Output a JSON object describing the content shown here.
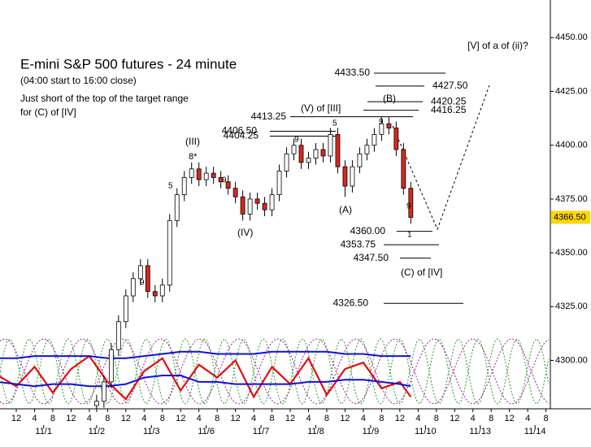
{
  "chart_data": {
    "type": "candlestick",
    "title": "E-mini S&P 500 futures - 24 minute",
    "subtitle": "(04:00 start to 16:00 close)",
    "notes": [
      "Just short of the top of the target range",
      "for (C) of [IV]"
    ],
    "ylim": [
      4277.5,
      4467.5
    ],
    "yticks": [
      {
        "value": 4450,
        "label": "4450.00"
      },
      {
        "value": 4425,
        "label": "4425.00"
      },
      {
        "value": 4400,
        "label": "4400.00"
      },
      {
        "value": 4375,
        "label": "4375.00"
      },
      {
        "value": 4350,
        "label": "4350.00"
      },
      {
        "value": 4325,
        "label": "4325.00"
      },
      {
        "value": 4300,
        "label": "4300.00"
      }
    ],
    "xlim": [
      -0.89,
      29.24
    ],
    "xticks": [
      {
        "value": 0,
        "label": "12"
      },
      {
        "value": 1,
        "label": "4"
      },
      {
        "value": 2,
        "label": "8"
      },
      {
        "value": 3,
        "label": "12"
      },
      {
        "value": 4,
        "label": "4"
      },
      {
        "value": 5,
        "label": "8"
      },
      {
        "value": 6,
        "label": "12"
      },
      {
        "value": 7,
        "label": "4"
      },
      {
        "value": 8,
        "label": "8"
      },
      {
        "value": 9,
        "label": "12"
      },
      {
        "value": 10,
        "label": "4"
      },
      {
        "value": 11,
        "label": "8"
      },
      {
        "value": 12,
        "label": "12"
      },
      {
        "value": 13,
        "label": "4"
      },
      {
        "value": 14,
        "label": "8"
      },
      {
        "value": 15,
        "label": "12"
      },
      {
        "value": 16,
        "label": "4"
      },
      {
        "value": 17,
        "label": "8"
      },
      {
        "value": 18,
        "label": "12"
      },
      {
        "value": 19,
        "label": "4"
      },
      {
        "value": 20,
        "label": "8"
      },
      {
        "value": 21,
        "label": "12"
      },
      {
        "value": 22,
        "label": "4"
      },
      {
        "value": 23,
        "label": "8"
      },
      {
        "value": 24,
        "label": "12"
      },
      {
        "value": 25,
        "label": "4"
      },
      {
        "value": 26,
        "label": "8"
      },
      {
        "value": 27,
        "label": "12"
      },
      {
        "value": 28,
        "label": "4"
      },
      {
        "value": 29,
        "label": "8"
      }
    ],
    "date_ticks": [
      {
        "value": 1.5,
        "label": "11/1"
      },
      {
        "value": 4.4,
        "label": "11/2"
      },
      {
        "value": 7.4,
        "label": "11/3"
      },
      {
        "value": 10.4,
        "label": "11/6"
      },
      {
        "value": 13.4,
        "label": "11/7"
      },
      {
        "value": 16.4,
        "label": "11/8"
      },
      {
        "value": 19.4,
        "label": "11/9"
      },
      {
        "value": 22.4,
        "label": "11/10"
      },
      {
        "value": 25.4,
        "label": "11/13"
      },
      {
        "value": 28.4,
        "label": "11/14"
      }
    ],
    "candles": {
      "x": [
        4.4,
        4.8,
        5.2,
        5.6,
        6,
        6.4,
        6.8,
        7.2,
        7.6,
        8,
        8.4,
        8.8,
        9.2,
        9.6,
        10,
        10.4,
        10.8,
        11.2,
        11.6,
        12,
        12.4,
        12.8,
        13.2,
        13.6,
        14,
        14.4,
        14.8,
        15.2,
        15.6,
        16,
        16.4,
        16.8,
        17.2,
        17.6,
        18,
        18.4,
        18.8,
        19.2,
        19.6,
        20,
        20.4,
        20.8,
        21.2,
        21.6
      ],
      "open": [
        4279,
        4281,
        4290,
        4305,
        4318,
        4330,
        4338,
        4344,
        4332,
        4330,
        4335,
        4365,
        4377,
        4385,
        4389,
        4384,
        4387,
        4385,
        4383,
        4380,
        4376,
        4368,
        4375,
        4373,
        4370,
        4377,
        4388,
        4396,
        4400,
        4392,
        4394,
        4398,
        4395,
        4405,
        4390,
        4381,
        4390,
        4396,
        4400,
        4405,
        4410,
        4408,
        4398,
        4380
      ],
      "high": [
        4284,
        4293,
        4308,
        4321,
        4333,
        4341,
        4347,
        4347,
        4335,
        4338,
        4368,
        4380,
        4388,
        4392,
        4392,
        4390,
        4390,
        4388,
        4386,
        4383,
        4379,
        4378,
        4378,
        4376,
        4380,
        4391,
        4399,
        4403,
        4403,
        4397,
        4401,
        4401,
        4408,
        4408,
        4393,
        4393,
        4399,
        4403,
        4408,
        4413,
        4413,
        4411,
        4401,
        4383
      ],
      "low": [
        4276,
        4278,
        4287,
        4302,
        4315,
        4327,
        4335,
        4329,
        4327,
        4327,
        4332,
        4362,
        4374,
        4382,
        4381,
        4381,
        4382,
        4380,
        4377,
        4373,
        4365,
        4365,
        4370,
        4367,
        4367,
        4374,
        4385,
        4393,
        4389,
        4389,
        4391,
        4392,
        4392,
        4387,
        4376,
        4378,
        4387,
        4393,
        4397,
        4402,
        4405,
        4395,
        4377,
        4363.5
      ],
      "close": [
        4281,
        4290,
        4305,
        4318,
        4330,
        4338,
        4344,
        4332,
        4330,
        4335,
        4365,
        4377,
        4385,
        4389,
        4384,
        4387,
        4385,
        4383,
        4380,
        4376,
        4368,
        4375,
        4373,
        4370,
        4377,
        4388,
        4396,
        4400,
        4392,
        4394,
        4398,
        4395,
        4405,
        4390,
        4381,
        4390,
        4396,
        4400,
        4405,
        4410,
        4408,
        4398,
        4380,
        4366.5
      ],
      "up_color": "#ffffff",
      "down_color": "#d8281e"
    },
    "oscillator": {
      "x": [
        -1,
        0,
        1,
        2,
        3,
        4,
        5,
        6,
        7,
        8,
        9,
        10,
        11,
        12,
        13,
        14,
        15,
        16,
        17,
        18,
        19,
        20,
        21,
        21.6
      ],
      "series": [
        {
          "color": "#e01010",
          "values": [
            4293,
            4288,
            4297,
            4285,
            4296,
            4302,
            4290,
            4282,
            4295,
            4301,
            4286,
            4298,
            4292,
            4300,
            4283,
            4297,
            4289,
            4301,
            4284,
            4296,
            4299,
            4287,
            4290,
            4283
          ]
        },
        {
          "color": "#1010e0",
          "values": [
            4301,
            4301,
            4302,
            4302,
            4302,
            4302,
            4301,
            4301,
            4302,
            4303,
            4304,
            4304,
            4303,
            4303,
            4303,
            4304,
            4304,
            4304,
            4304,
            4303,
            4303,
            4302,
            4302,
            4302
          ]
        },
        {
          "color": "#1010e0",
          "values": [
            4290,
            4289,
            4288,
            4289,
            4289,
            4288,
            4288,
            4289,
            4292,
            4293,
            4293,
            4290,
            4290,
            4289,
            4289,
            4289,
            4289,
            4290,
            4290,
            4291,
            4291,
            4290,
            4289,
            4288
          ]
        }
      ]
    },
    "levels": [
      {
        "value": 4433.5,
        "label": "4433.50"
      },
      {
        "value": 4427.5,
        "label": "4427.50"
      },
      {
        "value": 4420.25,
        "label": "4420.25"
      },
      {
        "value": 4416.25,
        "label": "4416.25"
      },
      {
        "value": 4413.25,
        "label": "4413.25"
      },
      {
        "value": 4406.5,
        "label": "4406.50"
      },
      {
        "value": 4404.25,
        "label": "4404.25"
      },
      {
        "value": 4360,
        "label": "4360.00"
      },
      {
        "value": 4353.75,
        "label": "4353.75"
      },
      {
        "value": 4347.5,
        "label": "4347.50"
      },
      {
        "value": 4326.5,
        "label": "4326.50"
      }
    ],
    "last_price": {
      "value": 4366.5,
      "label": "4366.50",
      "color": "#ffd700"
    },
    "annotations": [
      "[V] of a of (ii)?",
      "(V) of [III]",
      "(III)",
      "(IV)",
      "(A)",
      "(B)",
      "(C) of [IV]",
      "8*",
      "5",
      "9",
      "9",
      "9",
      "5",
      "9",
      "9",
      "1"
    ]
  }
}
